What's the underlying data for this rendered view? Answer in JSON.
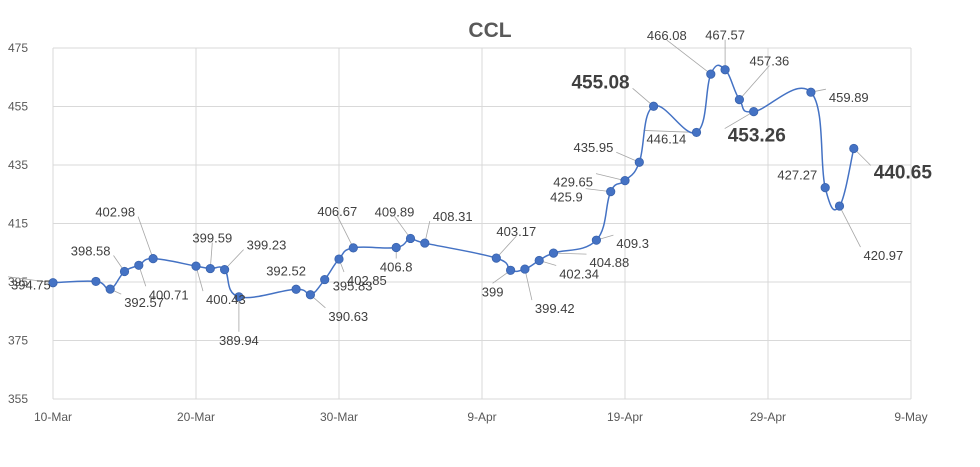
{
  "chart_data": {
    "type": "line",
    "title": "CCL",
    "xlabel": "",
    "ylabel": "",
    "ylim": [
      355,
      475
    ],
    "yticks": [
      355,
      375,
      395,
      415,
      435,
      455,
      475
    ],
    "xlim_day": [
      0,
      60
    ],
    "xticks": [
      {
        "day": 0,
        "label": "10-Mar"
      },
      {
        "day": 10,
        "label": "20-Mar"
      },
      {
        "day": 20,
        "label": "30-Mar"
      },
      {
        "day": 30,
        "label": "9-Apr"
      },
      {
        "day": 40,
        "label": "19-Apr"
      },
      {
        "day": 50,
        "label": "29-Apr"
      },
      {
        "day": 60,
        "label": "9-May"
      }
    ],
    "grid": true,
    "series": [
      {
        "color": "#4472c4",
        "points": [
          {
            "day": 0,
            "value": 394.75,
            "label": "394.75"
          },
          {
            "day": 3,
            "value": 395.2,
            "label": ""
          },
          {
            "day": 4,
            "value": 392.57,
            "label": "392.57"
          },
          {
            "day": 5,
            "value": 398.58,
            "label": "398.58"
          },
          {
            "day": 6,
            "value": 400.71,
            "label": "400.71"
          },
          {
            "day": 7,
            "value": 402.98,
            "label": "402.98"
          },
          {
            "day": 10,
            "value": 400.43,
            "label": "400.43"
          },
          {
            "day": 11,
            "value": 399.59,
            "label": "399.59"
          },
          {
            "day": 12,
            "value": 399.23,
            "label": "399.23"
          },
          {
            "day": 13,
            "value": 389.94,
            "label": "389.94"
          },
          {
            "day": 17,
            "value": 392.52,
            "label": "392.52"
          },
          {
            "day": 18,
            "value": 390.63,
            "label": "390.63"
          },
          {
            "day": 19,
            "value": 395.83,
            "label": "395.83"
          },
          {
            "day": 20,
            "value": 402.85,
            "label": "402.85"
          },
          {
            "day": 21,
            "value": 406.67,
            "label": "406.67"
          },
          {
            "day": 24,
            "value": 406.8,
            "label": "406.8"
          },
          {
            "day": 25,
            "value": 409.89,
            "label": "409.89"
          },
          {
            "day": 26,
            "value": 408.31,
            "label": "408.31"
          },
          {
            "day": 31,
            "value": 403.17,
            "label": "403.17"
          },
          {
            "day": 32,
            "value": 399,
            "label": "399"
          },
          {
            "day": 33,
            "value": 399.42,
            "label": "399.42"
          },
          {
            "day": 34,
            "value": 402.34,
            "label": "402.34"
          },
          {
            "day": 35,
            "value": 404.88,
            "label": "404.88"
          },
          {
            "day": 38,
            "value": 409.3,
            "label": "409.3"
          },
          {
            "day": 39,
            "value": 425.9,
            "label": "425.9"
          },
          {
            "day": 40,
            "value": 429.65,
            "label": "429.65"
          },
          {
            "day": 41,
            "value": 435.95,
            "label": "435.95"
          },
          {
            "day": 42,
            "value": 455.08,
            "label": "455.08"
          },
          {
            "day": 45,
            "value": 446.14,
            "label": "446.14"
          },
          {
            "day": 46,
            "value": 466.08,
            "label": "466.08"
          },
          {
            "day": 47,
            "value": 467.57,
            "label": "467.57"
          },
          {
            "day": 48,
            "value": 457.36,
            "label": "457.36"
          },
          {
            "day": 49,
            "value": 453.26,
            "label": "453.26"
          },
          {
            "day": 53,
            "value": 459.89,
            "label": "459.89"
          },
          {
            "day": 54,
            "value": 427.27,
            "label": "427.27"
          },
          {
            "day": 55,
            "value": 420.97,
            "label": "420.97"
          },
          {
            "day": 56,
            "value": 440.65,
            "label": "440.65"
          }
        ]
      }
    ]
  }
}
